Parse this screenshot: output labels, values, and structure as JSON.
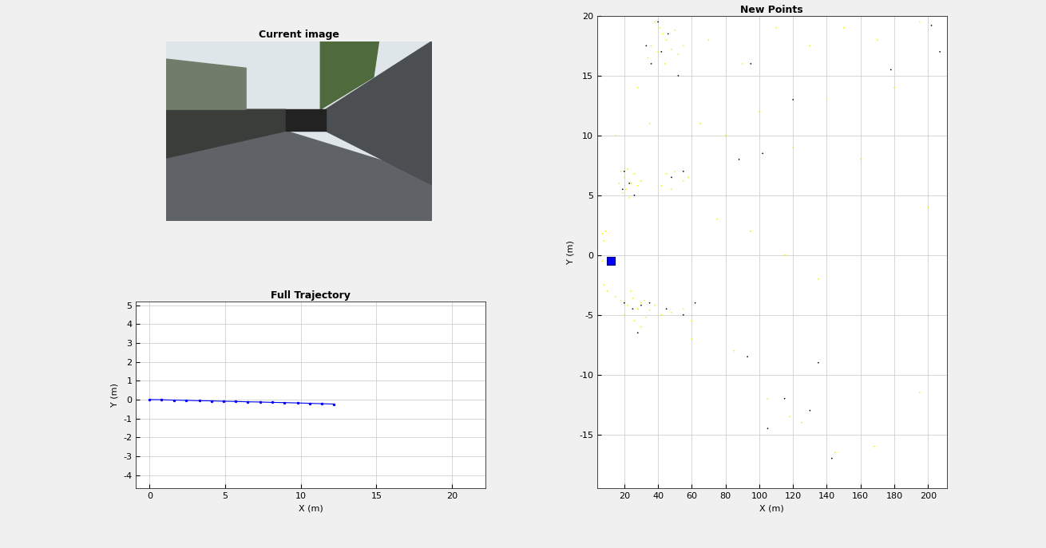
{
  "chart_data": [
    {
      "type": "image",
      "title": "Current image"
    },
    {
      "type": "line",
      "title": "Full Trajectory",
      "x_label": "X (m)",
      "y_label": "Y (m)",
      "x": [
        0,
        0.8,
        1.6,
        2.4,
        3.3,
        4.1,
        4.9,
        5.7,
        6.5,
        7.3,
        8.1,
        8.9,
        9.8,
        10.6,
        11.4,
        12.2
      ],
      "values": [
        0,
        -0.01,
        -0.03,
        -0.04,
        -0.06,
        -0.07,
        -0.09,
        -0.1,
        -0.12,
        -0.13,
        -0.15,
        -0.16,
        -0.18,
        -0.2,
        -0.22,
        -0.24
      ],
      "color": "#0000ff",
      "marker": "dot",
      "line_style": "solid",
      "xlim": [
        -0.9,
        22.2
      ],
      "ylim": [
        -4.7,
        5.2
      ],
      "xticks": [
        0,
        5,
        10,
        15,
        20
      ],
      "yticks": [
        -4,
        -3,
        -2,
        -1,
        0,
        1,
        2,
        3,
        4,
        5
      ],
      "grid": true
    },
    {
      "type": "scatter",
      "title": "New Points",
      "x_label": "X (m)",
      "y_label": "Y (m)",
      "series": [
        {
          "color": "#f2f200",
          "marker": "dot",
          "x": [
            38,
            41,
            43,
            45,
            36,
            40,
            48,
            52,
            44,
            55,
            34,
            50,
            18,
            20,
            22,
            24,
            21,
            19,
            26,
            28,
            17,
            23,
            30,
            45,
            50,
            55,
            48,
            58,
            42,
            15,
            18,
            22,
            25,
            28,
            30,
            32,
            35,
            20,
            26,
            30,
            38,
            42,
            48,
            55,
            60,
            24,
            33,
            7,
            8,
            9,
            7,
            8,
            10,
            70,
            90,
            110,
            130,
            150,
            170,
            195,
            80,
            100,
            120,
            140,
            160,
            75,
            95,
            115,
            135,
            85,
            105,
            118,
            125,
            145,
            168,
            195,
            200,
            180,
            60,
            65,
            35,
            28,
            15
          ],
          "y": [
            19.5,
            19,
            18.5,
            18,
            17.5,
            17,
            17.2,
            16.8,
            16,
            17.5,
            16.5,
            18.8,
            7,
            6.5,
            7.2,
            6,
            5.5,
            5.2,
            6.8,
            5.8,
            6,
            4.8,
            6.2,
            6.8,
            7,
            6.2,
            5.5,
            6.5,
            5.8,
            -3.5,
            -3.8,
            -4.2,
            -3.6,
            -4.5,
            -4,
            -3.8,
            -4.6,
            -5,
            -5.5,
            -6,
            -4.2,
            -5,
            -4.8,
            -4.5,
            -5.5,
            -3,
            -5.2,
            1.8,
            1.2,
            2,
            -0.5,
            -2.5,
            -3,
            18,
            16,
            19,
            17.5,
            19,
            18,
            19.5,
            10,
            12,
            9,
            13,
            8,
            3,
            2,
            0,
            -2,
            -8,
            -12,
            -13.5,
            -14,
            -16.5,
            -16,
            -11.5,
            4,
            14,
            -7,
            11,
            11,
            14,
            10
          ]
        },
        {
          "color": "#000000",
          "marker": "dot",
          "x": [
            40,
            42,
            46,
            33,
            36,
            52,
            20,
            23,
            19,
            26,
            48,
            55,
            20,
            25,
            30,
            35,
            28,
            45,
            55,
            62,
            88,
            102,
            95,
            120,
            115,
            130,
            135,
            143,
            105,
            178,
            207,
            202,
            93
          ],
          "y": [
            19.5,
            17,
            18.5,
            17.5,
            16,
            15,
            7,
            6,
            5.5,
            5,
            6.5,
            7,
            -4,
            -4.5,
            -4.2,
            -4,
            -6.5,
            -4.5,
            -5,
            -4,
            8,
            8.5,
            16,
            13,
            -12,
            -13,
            -9,
            -17,
            -14.5,
            15.5,
            17,
            19.2,
            -8.5
          ]
        },
        {
          "color": "#0000ff",
          "marker": "square",
          "x": [
            12
          ],
          "y": [
            -0.5
          ]
        }
      ],
      "xlim": [
        4,
        211
      ],
      "ylim": [
        -19.5,
        20
      ],
      "xticks": [
        20,
        40,
        60,
        80,
        100,
        120,
        140,
        160,
        180,
        200
      ],
      "yticks": [
        -15,
        -10,
        -5,
        0,
        5,
        10,
        15,
        20
      ],
      "grid": true
    }
  ]
}
